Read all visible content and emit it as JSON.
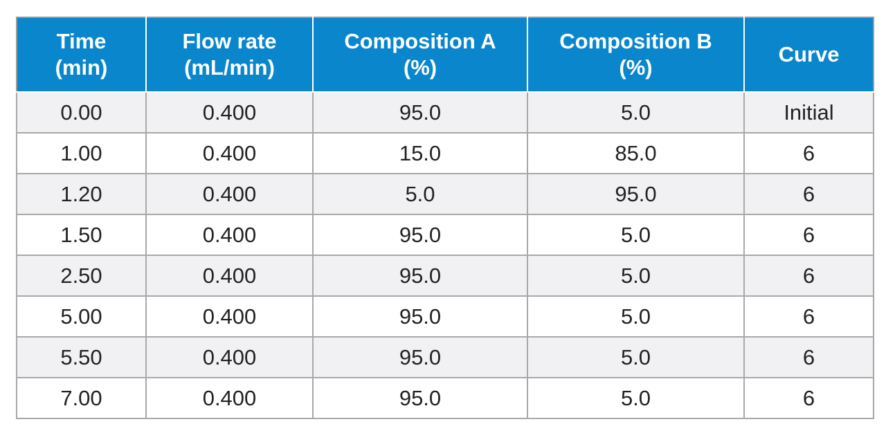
{
  "table": {
    "headers": [
      {
        "line1": "Time",
        "line2": "(min)"
      },
      {
        "line1": "Flow rate",
        "line2": "(mL/min)"
      },
      {
        "line1": "Composition A",
        "line2": "(%)"
      },
      {
        "line1": "Composition B",
        "line2": "(%)"
      },
      {
        "line1": "Curve",
        "line2": ""
      }
    ],
    "rows": [
      [
        "0.00",
        "0.400",
        "95.0",
        "5.0",
        "Initial"
      ],
      [
        "1.00",
        "0.400",
        "15.0",
        "85.0",
        "6"
      ],
      [
        "1.20",
        "0.400",
        "5.0",
        "95.0",
        "6"
      ],
      [
        "1.50",
        "0.400",
        "95.0",
        "5.0",
        "6"
      ],
      [
        "2.50",
        "0.400",
        "95.0",
        "5.0",
        "6"
      ],
      [
        "5.00",
        "0.400",
        "95.0",
        "5.0",
        "6"
      ],
      [
        "5.50",
        "0.400",
        "95.0",
        "5.0",
        "6"
      ],
      [
        "7.00",
        "0.400",
        "95.0",
        "5.0",
        "6"
      ]
    ]
  },
  "colors": {
    "header_bg": "#0a86cd",
    "header_text": "#ffffff",
    "row_alt_bg": "#f1f1f4",
    "grid_line": "#a8a8a8"
  }
}
